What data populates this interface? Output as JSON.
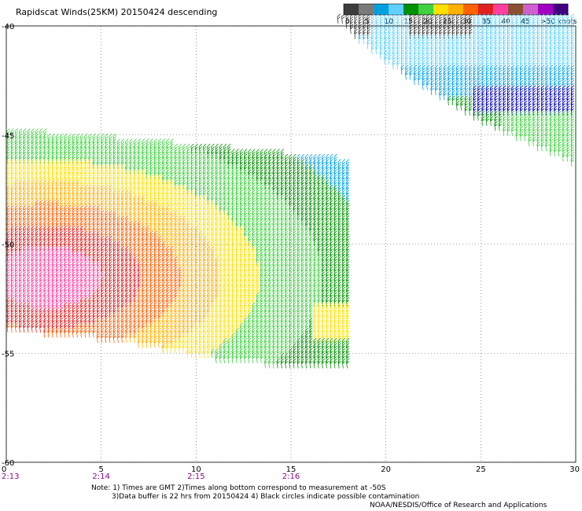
{
  "title": "Rapidscat Winds(25KM) 20150424 descending",
  "colorbar": {
    "labels": [
      "0",
      "5",
      "10",
      "15",
      "20",
      "25",
      "30",
      "35",
      "40",
      "45",
      ">50 knots"
    ],
    "colors": [
      "#3c3c3c",
      "#7a7a7a",
      "#00a0e0",
      "#60d0ff",
      "#009000",
      "#40d040",
      "#ffe000",
      "#ffb000",
      "#ff6000",
      "#e02020",
      "#ff40a0",
      "#8a5030",
      "#d060d0",
      "#a000c0",
      "#400080"
    ]
  },
  "map": {
    "x_ticks": [
      "0",
      "5",
      "10",
      "15",
      "20",
      "25",
      "30"
    ],
    "y_ticks": [
      "-40",
      "-45",
      "-50",
      "-55",
      "-60"
    ],
    "time_labels": [
      "2:13",
      "2:14",
      "2:15",
      "2:16"
    ],
    "x_range": [
      0,
      30
    ],
    "y_range": [
      -40,
      -60
    ],
    "grid": "dotted"
  },
  "notes": [
    "Note: 1) Times are GMT 2)Times along bottom correspond to measurement at -50S",
    "3)Data buffer is 22 hrs from 20150424 4) Black circles indicate possible contamination",
    "NOAA/NESDIS/Office of Research and Applications"
  ]
}
